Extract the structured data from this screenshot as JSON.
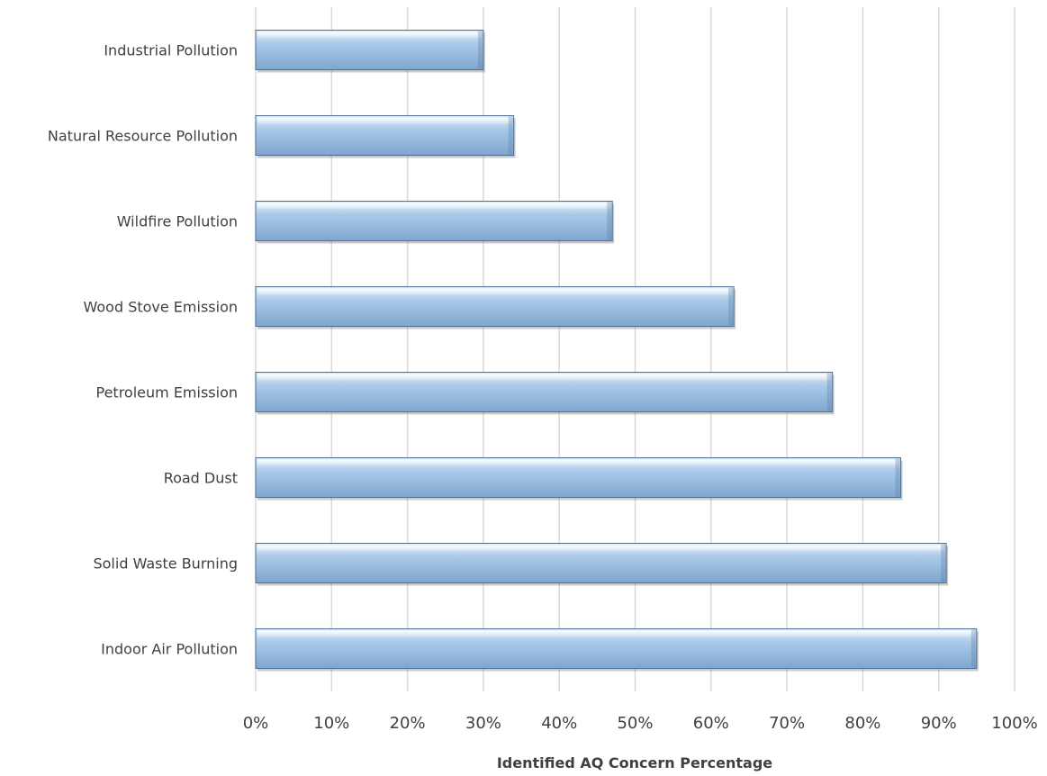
{
  "chart_data": {
    "type": "bar",
    "orientation": "horizontal",
    "title": "",
    "xlabel": "Identified AQ Concern Percentage",
    "ylabel": "",
    "categories": [
      "Industrial Pollution",
      "Natural Resource Pollution",
      "Wildfire Pollution",
      "Wood Stove Emission",
      "Petroleum Emission",
      "Road Dust",
      "Solid Waste Burning",
      "Indoor Air Pollution"
    ],
    "values": [
      30,
      34,
      47,
      63,
      76,
      85,
      91,
      95
    ],
    "xlim": [
      0,
      100
    ],
    "x_ticks": [
      0,
      10,
      20,
      30,
      40,
      50,
      60,
      70,
      80,
      90,
      100
    ],
    "x_tick_labels": [
      "0%",
      "10%",
      "20%",
      "30%",
      "40%",
      "50%",
      "60%",
      "70%",
      "80%",
      "90%",
      "100%"
    ],
    "grid": true,
    "legend": "none",
    "colors": {
      "bar_top": "#d7e6f5",
      "bar_mid": "#9dc0e3",
      "bar_bottom": "#7fa6cf",
      "bar_edge": "#4f6f93",
      "grid": "#d9d9d9",
      "text": "#404040"
    }
  }
}
